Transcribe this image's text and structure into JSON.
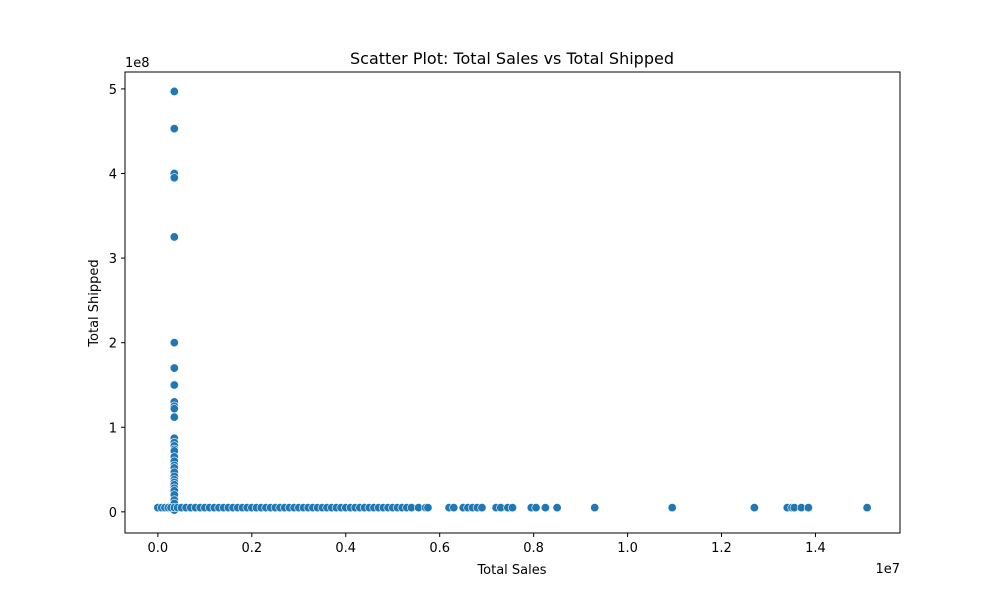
{
  "chart_data": {
    "type": "scatter",
    "title": "Scatter Plot: Total Sales vs Total Shipped",
    "xlabel": "Total Sales",
    "ylabel": "Total Shipped",
    "x_offset_label": "1e7",
    "y_offset_label": "1e8",
    "xlim": [
      -0.07,
      1.58
    ],
    "ylim": [
      -0.25,
      5.2
    ],
    "xticks": [
      0.0,
      0.2,
      0.4,
      0.6,
      0.8,
      1.0,
      1.2,
      1.4
    ],
    "xtick_labels": [
      "0.0",
      "0.2",
      "0.4",
      "0.6",
      "0.8",
      "1.0",
      "1.2",
      "1.4"
    ],
    "yticks": [
      0,
      1,
      2,
      3,
      4,
      5
    ],
    "ytick_labels": [
      "0",
      "1",
      "2",
      "3",
      "4",
      "5"
    ],
    "grid": false,
    "legend": "none",
    "marker_color": "#1f77b4",
    "points": [
      [
        0.035,
        4.97
      ],
      [
        0.035,
        4.53
      ],
      [
        0.035,
        4.0
      ],
      [
        0.035,
        3.95
      ],
      [
        0.035,
        3.25
      ],
      [
        0.035,
        2.0
      ],
      [
        0.035,
        1.7
      ],
      [
        0.035,
        1.5
      ],
      [
        0.035,
        1.3
      ],
      [
        0.035,
        1.25
      ],
      [
        0.035,
        1.22
      ],
      [
        0.035,
        1.12
      ],
      [
        0.035,
        0.87
      ],
      [
        0.035,
        0.82
      ],
      [
        0.035,
        0.78
      ],
      [
        0.035,
        0.74
      ],
      [
        0.035,
        0.72
      ],
      [
        0.035,
        0.65
      ],
      [
        0.035,
        0.6
      ],
      [
        0.035,
        0.55
      ],
      [
        0.035,
        0.52
      ],
      [
        0.035,
        0.47
      ],
      [
        0.035,
        0.42
      ],
      [
        0.035,
        0.38
      ],
      [
        0.035,
        0.35
      ],
      [
        0.035,
        0.32
      ],
      [
        0.035,
        0.28
      ],
      [
        0.035,
        0.25
      ],
      [
        0.035,
        0.2
      ],
      [
        0.035,
        0.14
      ],
      [
        0.035,
        0.1
      ],
      [
        0.035,
        0.02
      ],
      [
        0.0,
        0.05
      ],
      [
        0.008,
        0.05
      ],
      [
        0.015,
        0.05
      ],
      [
        0.022,
        0.05
      ],
      [
        0.028,
        0.05
      ],
      [
        0.035,
        0.05
      ],
      [
        0.042,
        0.05
      ],
      [
        0.05,
        0.05
      ],
      [
        0.06,
        0.05
      ],
      [
        0.07,
        0.05
      ],
      [
        0.08,
        0.05
      ],
      [
        0.09,
        0.05
      ],
      [
        0.1,
        0.05
      ],
      [
        0.11,
        0.05
      ],
      [
        0.12,
        0.05
      ],
      [
        0.13,
        0.05
      ],
      [
        0.14,
        0.05
      ],
      [
        0.15,
        0.05
      ],
      [
        0.16,
        0.05
      ],
      [
        0.17,
        0.05
      ],
      [
        0.18,
        0.05
      ],
      [
        0.19,
        0.05
      ],
      [
        0.2,
        0.05
      ],
      [
        0.21,
        0.05
      ],
      [
        0.22,
        0.05
      ],
      [
        0.23,
        0.05
      ],
      [
        0.24,
        0.05
      ],
      [
        0.25,
        0.05
      ],
      [
        0.26,
        0.05
      ],
      [
        0.27,
        0.05
      ],
      [
        0.28,
        0.05
      ],
      [
        0.29,
        0.05
      ],
      [
        0.3,
        0.05
      ],
      [
        0.31,
        0.05
      ],
      [
        0.32,
        0.05
      ],
      [
        0.33,
        0.05
      ],
      [
        0.34,
        0.05
      ],
      [
        0.35,
        0.05
      ],
      [
        0.36,
        0.05
      ],
      [
        0.37,
        0.05
      ],
      [
        0.38,
        0.05
      ],
      [
        0.39,
        0.05
      ],
      [
        0.4,
        0.05
      ],
      [
        0.41,
        0.05
      ],
      [
        0.42,
        0.05
      ],
      [
        0.43,
        0.05
      ],
      [
        0.44,
        0.05
      ],
      [
        0.45,
        0.05
      ],
      [
        0.46,
        0.05
      ],
      [
        0.47,
        0.05
      ],
      [
        0.48,
        0.05
      ],
      [
        0.49,
        0.05
      ],
      [
        0.5,
        0.05
      ],
      [
        0.51,
        0.05
      ],
      [
        0.52,
        0.05
      ],
      [
        0.53,
        0.05
      ],
      [
        0.54,
        0.05
      ],
      [
        0.555,
        0.05
      ],
      [
        0.57,
        0.05
      ],
      [
        0.575,
        0.05
      ],
      [
        0.62,
        0.05
      ],
      [
        0.63,
        0.05
      ],
      [
        0.65,
        0.05
      ],
      [
        0.66,
        0.05
      ],
      [
        0.67,
        0.05
      ],
      [
        0.68,
        0.05
      ],
      [
        0.69,
        0.05
      ],
      [
        0.72,
        0.05
      ],
      [
        0.73,
        0.05
      ],
      [
        0.745,
        0.05
      ],
      [
        0.755,
        0.05
      ],
      [
        0.795,
        0.05
      ],
      [
        0.805,
        0.05
      ],
      [
        0.825,
        0.05
      ],
      [
        0.85,
        0.05
      ],
      [
        0.93,
        0.05
      ],
      [
        1.095,
        0.05
      ],
      [
        1.27,
        0.05
      ],
      [
        1.34,
        0.05
      ],
      [
        1.35,
        0.05
      ],
      [
        1.355,
        0.05
      ],
      [
        1.37,
        0.05
      ],
      [
        1.385,
        0.05
      ],
      [
        1.51,
        0.05
      ]
    ]
  }
}
